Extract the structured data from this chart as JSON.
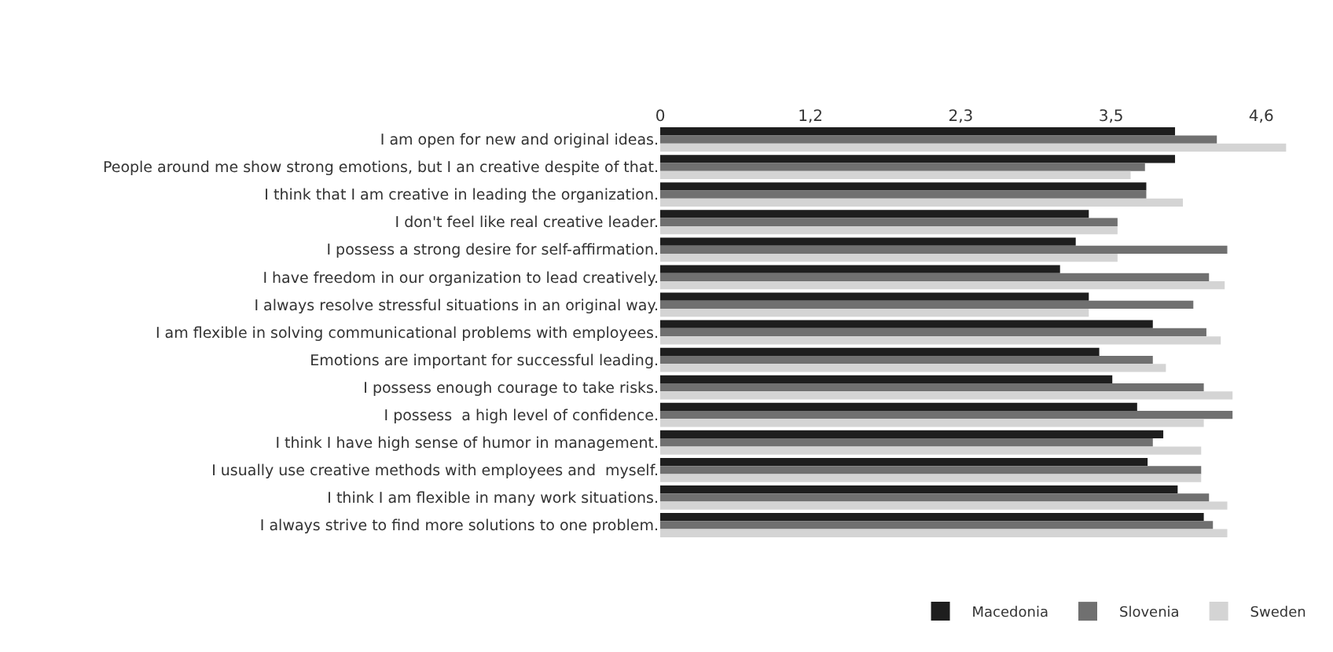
{
  "chart_data": {
    "type": "bar",
    "orientation": "horizontal",
    "categories": [
      "I am open for new and original ideas.",
      "People around me show strong emotions, but I an creative despite of that.",
      "I think that I am creative in leading the organization.",
      "I don't feel like real creative leader.",
      "I possess a strong desire for self-affirmation.",
      "I have freedom in our organization to lead creatively.",
      "I always resolve stressful situations in an original way.",
      "I am flexible in solving communicational problems with employees.",
      "Emotions are important for successful leading.",
      "I possess enough courage to take risks.",
      "I possess  a high level of confidence.",
      "I think I have high sense of humor in management.",
      "I usually use creative methods with employees and  myself.",
      "I think I am flexible in many work situations.",
      "I always strive to find more solutions to one problem."
    ],
    "series": [
      {
        "name": "Macedonia",
        "color": "#1e1e1e",
        "values": [
          3.94,
          3.94,
          3.72,
          3.28,
          3.18,
          3.06,
          3.28,
          3.77,
          3.36,
          3.46,
          3.65,
          3.85,
          3.73,
          3.96,
          4.16
        ]
      },
      {
        "name": "Slovenia",
        "color": "#707070",
        "values": [
          4.26,
          3.71,
          3.72,
          3.5,
          4.34,
          4.2,
          4.08,
          4.18,
          3.77,
          4.16,
          4.38,
          3.77,
          4.14,
          4.2,
          4.23
        ]
      },
      {
        "name": "Sweden",
        "color": "#d4d4d4",
        "values": [
          4.79,
          3.6,
          4.0,
          3.5,
          3.5,
          4.32,
          3.28,
          4.29,
          3.87,
          4.38,
          4.16,
          4.14,
          4.14,
          4.34,
          4.34
        ]
      }
    ],
    "xlim": [
      0,
      4.8
    ],
    "xticks": [
      0,
      {
        "value": 1.15,
        "label": "1,2"
      },
      {
        "value": 2.3,
        "label": "2,3"
      },
      {
        "value": 3.45,
        "label": "3,5"
      },
      {
        "value": 4.6,
        "label": "4,6"
      }
    ],
    "grid": false,
    "legend": "bottom"
  }
}
